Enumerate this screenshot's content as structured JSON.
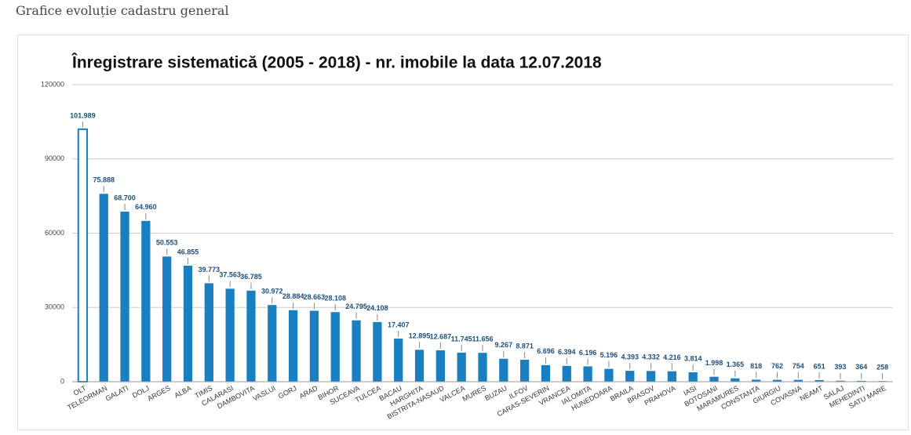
{
  "page_heading": "Grafice evoluție cadastru general",
  "chart_data": {
    "type": "bar",
    "title": "Înregistrare sistematică (2005 - 2018) - nr. imobile la data 12.07.2018",
    "categories": [
      "OLT",
      "TELEORMAN",
      "GALATI",
      "DOLJ",
      "ARGES",
      "ALBA",
      "TIMIS",
      "CALARASI",
      "DAMBOVITA",
      "VASLUI",
      "GORJ",
      "ARAD",
      "BIHOR",
      "SUCEAVA",
      "TULCEA",
      "BACAU",
      "HARGHITA",
      "BISTRITA-NASAUD",
      "VALCEA",
      "MURES",
      "BUZAU",
      "ILFOV",
      "CARAS-SEVERIN",
      "VRANCEA",
      "IALOMITA",
      "HUNEDOARA",
      "BRAILA",
      "BRASOV",
      "PRAHOVA",
      "IASI",
      "BOTOSANI",
      "MARAMURES",
      "CONSTANTA",
      "GIURGIU",
      "COVASNA",
      "NEAMT",
      "SALAJ",
      "MEHEDINTI",
      "SATU MARE"
    ],
    "values": [
      101989,
      75888,
      68700,
      64960,
      50553,
      46855,
      39773,
      37563,
      36785,
      30972,
      28884,
      28663,
      28108,
      24795,
      24108,
      17407,
      12895,
      12687,
      11745,
      11656,
      9267,
      8871,
      6696,
      6394,
      6196,
      5196,
      4393,
      4332,
      4216,
      3814,
      1998,
      1365,
      818,
      762,
      754,
      651,
      393,
      364,
      258
    ],
    "value_labels": [
      "101.989",
      "75.888",
      "68.700",
      "64.960",
      "50.553",
      "46.855",
      "39.773",
      "37.563",
      "36.785",
      "30.972",
      "28.884",
      "28.663",
      "28.108",
      "24.795",
      "24.108",
      "17.407",
      "12.895",
      "12.687",
      "11.745",
      "11.656",
      "9.267",
      "8.871",
      "6.696",
      "6.394",
      "6.196",
      "5.196",
      "4.393",
      "4.332",
      "4.216",
      "3.814",
      "1.998",
      "1.365",
      "818",
      "762",
      "754",
      "651",
      "393",
      "364",
      "258"
    ],
    "color": "#1a7fc1",
    "highlight_category": "OLT",
    "ylim": [
      0,
      120000
    ],
    "yticks": [
      0,
      30000,
      60000,
      90000,
      120000
    ],
    "grid": true
  }
}
